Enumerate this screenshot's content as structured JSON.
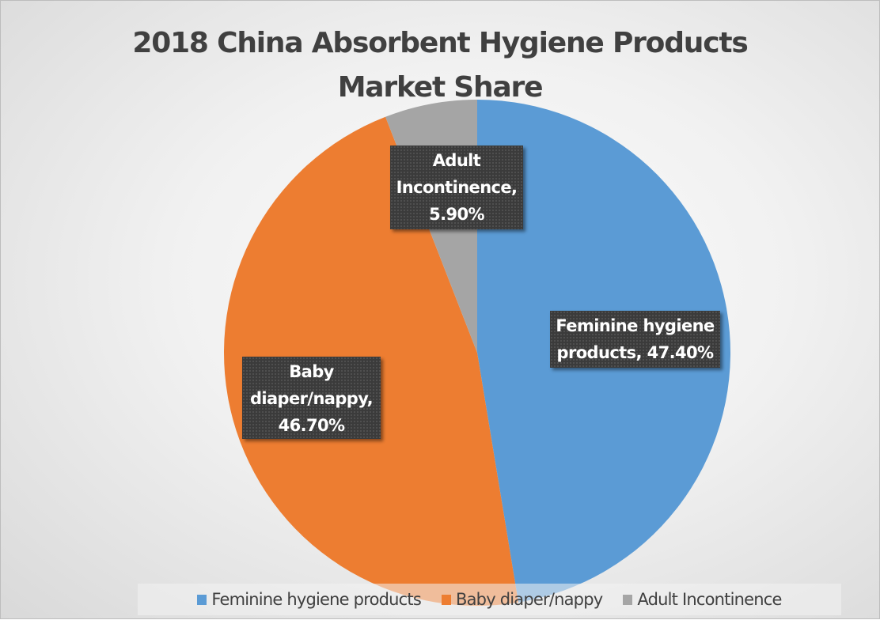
{
  "chart_data": {
    "type": "pie",
    "title": "2018 China Absorbent Hygiene Products Market Share",
    "title_lines": [
      "2018 China Absorbent Hygiene Products",
      "Market Share"
    ],
    "categories": [
      "Feminine hygiene products",
      "Baby diaper/nappy",
      "Adult Incontinence"
    ],
    "values": [
      47.4,
      46.7,
      5.9
    ],
    "colors": [
      "#5B9BD5",
      "#ED7D31",
      "#A5A5A5"
    ],
    "data_labels": [
      {
        "lines": [
          "Feminine hygiene",
          "products, 47.40%"
        ]
      },
      {
        "lines": [
          "Baby",
          "diaper/nappy,",
          "46.70%"
        ]
      },
      {
        "lines": [
          "Adult",
          "Incontinence,",
          "5.90%"
        ]
      }
    ],
    "legend": {
      "position": "bottom",
      "entries": [
        "Feminine hygiene products",
        "Baby diaper/nappy",
        "Adult Incontinence"
      ]
    },
    "start_angle_deg": 0,
    "direction": "clockwise"
  }
}
